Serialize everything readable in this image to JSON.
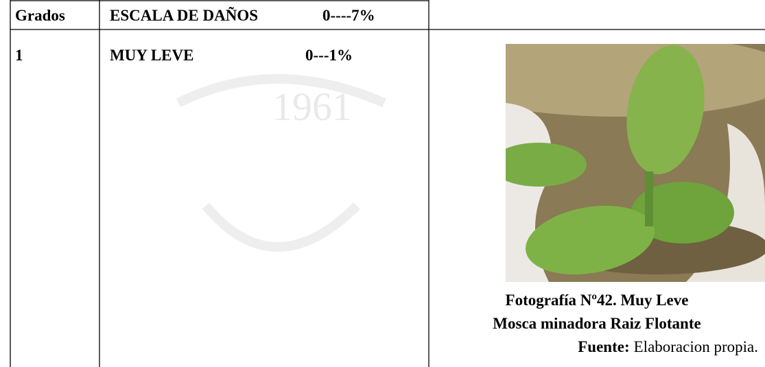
{
  "watermark": "1961",
  "table": {
    "header": [
      "Grados",
      "ESCALA DE DAÑOS",
      "0----7%"
    ],
    "rows": [
      [
        "1",
        "MUY LEVE",
        "0---1%"
      ]
    ]
  },
  "figure": {
    "caption": "Fotografía Nº42. Muy Leve",
    "subcaption": "Mosca minadora Raiz Flotante",
    "source_label": "Fuente:",
    "source": "Elaboracion propia."
  }
}
